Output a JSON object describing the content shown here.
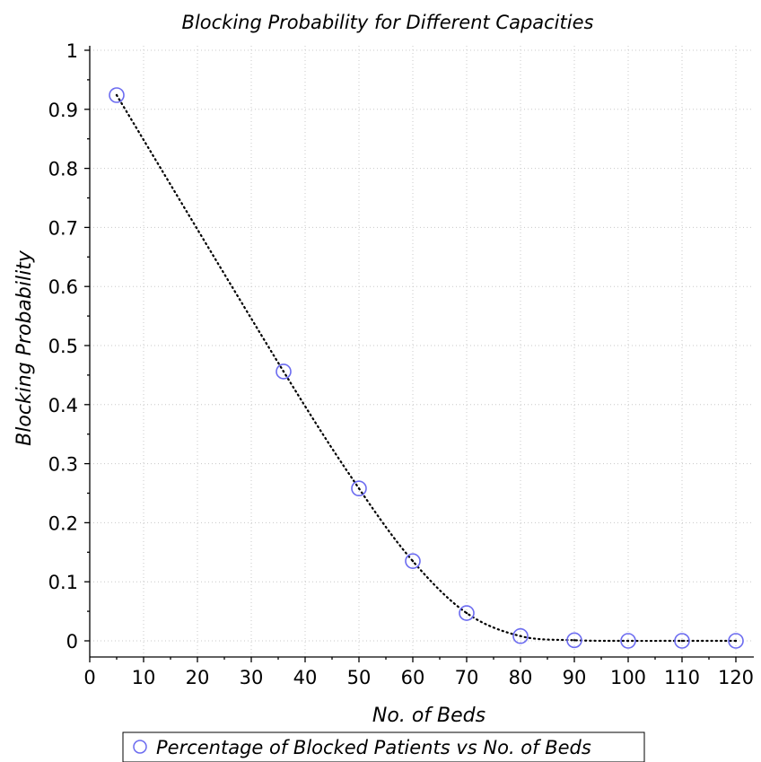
{
  "chart_data": {
    "type": "scatter",
    "title": "Blocking Probability for Different Capacities",
    "xlabel": "No. of Beds",
    "ylabel": "Blocking Probability",
    "xlim": [
      0,
      120
    ],
    "ylim": [
      0,
      1
    ],
    "x_ticks": [
      "0",
      "10",
      "20",
      "30",
      "40",
      "50",
      "60",
      "70",
      "80",
      "90",
      "100",
      "110",
      "120"
    ],
    "y_ticks": [
      "0",
      "0.1",
      "0.2",
      "0.3",
      "0.4",
      "0.5",
      "0.6",
      "0.7",
      "0.8",
      "0.9",
      "1"
    ],
    "x_tick_values": [
      0,
      10,
      20,
      30,
      40,
      50,
      60,
      70,
      80,
      90,
      100,
      110,
      120
    ],
    "y_tick_values": [
      0,
      0.1,
      0.2,
      0.3,
      0.4,
      0.5,
      0.6,
      0.7,
      0.8,
      0.9,
      1
    ],
    "grid": true,
    "legend_position": "bottom",
    "series": [
      {
        "name": "Percentage of Blocked Patients vs No. of Beds",
        "marker": "open-circle",
        "line_style": "dotted",
        "marker_color": "#6b6bf0",
        "line_color": "#000000",
        "x": [
          5,
          36,
          50,
          60,
          70,
          80,
          90,
          100,
          110,
          120
        ],
        "y": [
          0.924,
          0.456,
          0.258,
          0.135,
          0.047,
          0.008,
          0.001,
          0.0,
          0.0,
          0.0
        ]
      }
    ]
  }
}
